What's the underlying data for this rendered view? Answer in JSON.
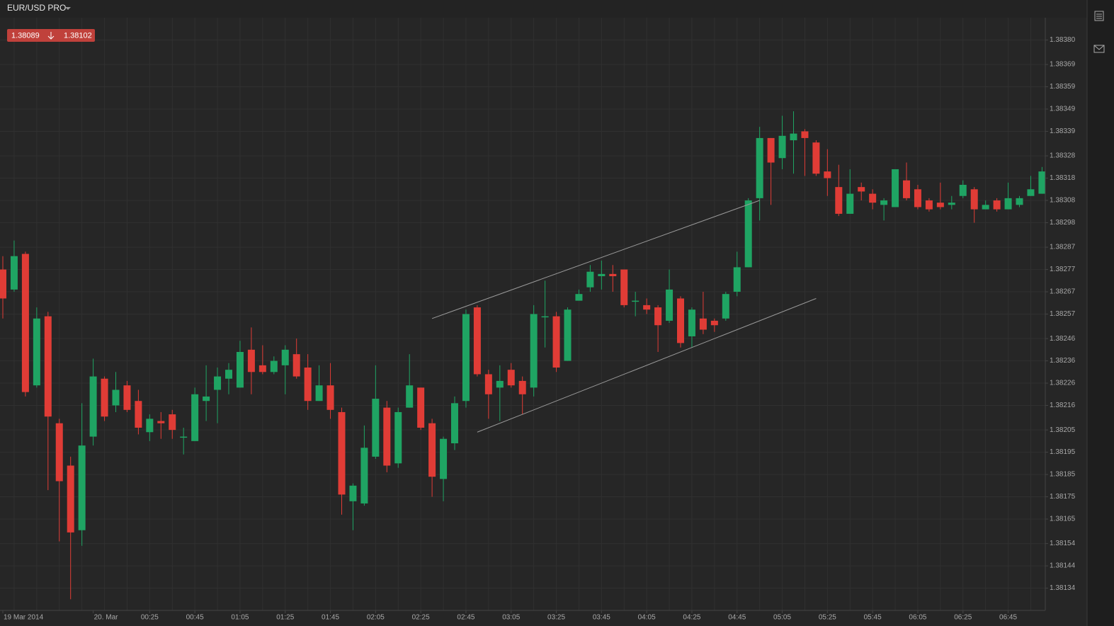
{
  "symbol": "EUR/USD PRO",
  "bid": 1.38089,
  "ask": 1.38102,
  "chart_data": {
    "type": "candlestick",
    "x": [
      "23:20",
      "23:25",
      "23:30",
      "23:35",
      "23:40",
      "23:45",
      "23:50",
      "23:55",
      "00:00",
      "00:05",
      "00:10",
      "00:15",
      "00:20",
      "00:25",
      "00:30",
      "00:35",
      "00:40",
      "00:45",
      "00:50",
      "00:55",
      "01:00",
      "01:05",
      "01:10",
      "01:15",
      "01:20",
      "01:25",
      "01:30",
      "01:35",
      "01:40",
      "01:45",
      "01:50",
      "01:55",
      "02:00",
      "02:05",
      "02:10",
      "02:15",
      "02:20",
      "02:25",
      "02:30",
      "02:35",
      "02:40",
      "02:45",
      "02:50",
      "02:55",
      "03:00",
      "03:05",
      "03:10",
      "03:15",
      "03:20",
      "03:25",
      "03:30",
      "03:35",
      "03:40",
      "03:45",
      "03:50",
      "03:55",
      "04:00",
      "04:05",
      "04:10",
      "04:15",
      "04:20",
      "04:25",
      "04:30",
      "04:35",
      "04:40",
      "04:45",
      "04:50",
      "04:55",
      "05:00",
      "05:05",
      "05:10",
      "05:15",
      "05:20",
      "05:25",
      "05:30",
      "05:35",
      "05:40",
      "05:45",
      "05:50",
      "05:55",
      "06:00",
      "06:05",
      "06:10",
      "06:15",
      "06:20",
      "06:25",
      "06:30",
      "06:35",
      "06:40",
      "06:45",
      "06:50",
      "06:55",
      "07:00"
    ],
    "open": [
      1.38277,
      1.38268,
      1.38284,
      1.38225,
      1.38256,
      1.38208,
      1.38189,
      1.3816,
      1.38202,
      1.38228,
      1.38216,
      1.38225,
      1.38218,
      1.38204,
      1.38209,
      1.38212,
      1.38202,
      1.382,
      1.38218,
      1.38223,
      1.38228,
      1.38224,
      1.38241,
      1.38234,
      1.38231,
      1.38234,
      1.38239,
      1.38233,
      1.38218,
      1.38225,
      1.38213,
      1.38173,
      1.38172,
      1.38193,
      1.38215,
      1.3819,
      1.38215,
      1.38224,
      1.38208,
      1.38183,
      1.38199,
      1.38218,
      1.3826,
      1.3823,
      1.38224,
      1.38232,
      1.38227,
      1.38224,
      1.38256,
      1.38256,
      1.38236,
      1.38263,
      1.38269,
      1.38274,
      1.38275,
      1.38277,
      1.38263,
      1.38261,
      1.3826,
      1.38254,
      1.38264,
      1.38247,
      1.38255,
      1.38254,
      1.38255,
      1.38267,
      1.38278,
      1.38309,
      1.38336,
      1.38327,
      1.38335,
      1.38339,
      1.38334,
      1.38321,
      1.38314,
      1.38302,
      1.38314,
      1.38311,
      1.38306,
      1.38305,
      1.38317,
      1.38313,
      1.38308,
      1.38307,
      1.38306,
      1.3831,
      1.38313,
      1.38304,
      1.38308,
      1.38304,
      1.38306,
      1.3831,
      1.38311
    ],
    "high": [
      1.38283,
      1.3829,
      1.38285,
      1.3826,
      1.38258,
      1.3821,
      1.38193,
      1.38217,
      1.38237,
      1.38229,
      1.38231,
      1.38227,
      1.38223,
      1.38212,
      1.38213,
      1.38214,
      1.38206,
      1.38224,
      1.38234,
      1.38233,
      1.38235,
      1.38245,
      1.38251,
      1.38243,
      1.38238,
      1.38243,
      1.38246,
      1.38239,
      1.38234,
      1.38235,
      1.38215,
      1.38181,
      1.38207,
      1.38234,
      1.38218,
      1.38215,
      1.38239,
      1.38224,
      1.3821,
      1.38202,
      1.3822,
      1.38259,
      1.38261,
      1.38232,
      1.38234,
      1.38235,
      1.38229,
      1.38261,
      1.38272,
      1.38258,
      1.3826,
      1.38268,
      1.38279,
      1.38281,
      1.38279,
      1.38277,
      1.38267,
      1.38264,
      1.38261,
      1.38277,
      1.38265,
      1.3826,
      1.38267,
      1.38255,
      1.38267,
      1.38285,
      1.38309,
      1.38341,
      1.38336,
      1.38346,
      1.38348,
      1.3834,
      1.38335,
      1.38331,
      1.38324,
      1.38322,
      1.38316,
      1.38313,
      1.38309,
      1.38322,
      1.38325,
      1.38315,
      1.38309,
      1.38316,
      1.3831,
      1.38317,
      1.38314,
      1.38308,
      1.38309,
      1.38316,
      1.3831,
      1.38319,
      1.38323
    ],
    "low": [
      1.38255,
      1.38267,
      1.3822,
      1.38224,
      1.38178,
      1.38155,
      1.38129,
      1.38153,
      1.38198,
      1.38209,
      1.38213,
      1.38213,
      1.38203,
      1.382,
      1.38201,
      1.38201,
      1.38194,
      1.382,
      1.38209,
      1.38208,
      1.38221,
      1.38224,
      1.38221,
      1.3823,
      1.3823,
      1.38221,
      1.38228,
      1.38214,
      1.38218,
      1.3821,
      1.38167,
      1.3816,
      1.38171,
      1.38192,
      1.38186,
      1.38188,
      1.38215,
      1.38205,
      1.38175,
      1.38173,
      1.38196,
      1.38215,
      1.38229,
      1.3821,
      1.38209,
      1.38224,
      1.38212,
      1.3822,
      1.38242,
      1.38231,
      1.38236,
      1.38263,
      1.38267,
      1.38268,
      1.38267,
      1.3826,
      1.38256,
      1.38257,
      1.3824,
      1.38253,
      1.38242,
      1.38242,
      1.38248,
      1.38249,
      1.38254,
      1.38265,
      1.38278,
      1.38299,
      1.38306,
      1.38322,
      1.3832,
      1.38319,
      1.38319,
      1.3831,
      1.38301,
      1.38302,
      1.38308,
      1.38304,
      1.38299,
      1.38305,
      1.38308,
      1.38304,
      1.38303,
      1.38304,
      1.38304,
      1.38309,
      1.38298,
      1.38304,
      1.38303,
      1.38304,
      1.38305,
      1.3831,
      1.38311
    ],
    "close": [
      1.38264,
      1.38283,
      1.38222,
      1.38255,
      1.38211,
      1.38182,
      1.38159,
      1.38198,
      1.38229,
      1.38211,
      1.38223,
      1.38214,
      1.38206,
      1.3821,
      1.38208,
      1.38205,
      1.38202,
      1.38221,
      1.3822,
      1.38229,
      1.38232,
      1.3824,
      1.38231,
      1.38231,
      1.38236,
      1.38241,
      1.38229,
      1.38218,
      1.38225,
      1.38214,
      1.38176,
      1.3818,
      1.38197,
      1.38219,
      1.38189,
      1.38213,
      1.38225,
      1.38206,
      1.38184,
      1.38201,
      1.38217,
      1.38257,
      1.3823,
      1.38221,
      1.38227,
      1.38225,
      1.38221,
      1.38257,
      1.38256,
      1.38233,
      1.38259,
      1.38266,
      1.38276,
      1.38275,
      1.38274,
      1.38261,
      1.38263,
      1.38259,
      1.38252,
      1.38268,
      1.38244,
      1.38259,
      1.3825,
      1.38252,
      1.38266,
      1.38278,
      1.38308,
      1.38336,
      1.38325,
      1.38337,
      1.38338,
      1.38336,
      1.3832,
      1.38318,
      1.38302,
      1.38311,
      1.38312,
      1.38307,
      1.38308,
      1.38322,
      1.38309,
      1.38305,
      1.38304,
      1.38305,
      1.38307,
      1.38315,
      1.38304,
      1.38306,
      1.38304,
      1.38309,
      1.38309,
      1.38313,
      1.38321
    ],
    "up_color": "#1fa463",
    "down_color": "#e03c36",
    "ylim": [
      1.38124,
      1.3839
    ],
    "yticks": [
      {
        "value": 1.3838,
        "label": "1.38380"
      },
      1.38369,
      1.38359,
      1.38349,
      1.38339,
      1.38328,
      1.38318,
      1.38308,
      1.38298,
      1.38287,
      1.38277,
      1.38267,
      1.38257,
      1.38246,
      1.38236,
      1.38226,
      1.38216,
      1.38205,
      1.38195,
      1.38185,
      1.38175,
      1.38165,
      1.38154,
      1.38144,
      1.38134
    ],
    "xticks": [
      {
        "value": "23:20",
        "label": "19 Mar 2014"
      },
      {
        "value": "00:00",
        "label": "20. Mar"
      },
      "00:25",
      "00:45",
      "01:05",
      "01:25",
      "01:45",
      "02:05",
      "02:25",
      "02:45",
      "03:05",
      "03:25",
      "03:45",
      "04:05",
      "04:25",
      "04:45",
      "05:05",
      "05:25",
      "05:45",
      "06:05",
      "06:25",
      "06:45"
    ],
    "grid": true,
    "trendlines": [
      {
        "x": [
          "02:30",
          "04:55"
        ],
        "y": [
          1.38255,
          1.38308
        ]
      },
      {
        "x": [
          "02:50",
          "05:20"
        ],
        "y": [
          1.38204,
          1.38264
        ]
      }
    ]
  }
}
